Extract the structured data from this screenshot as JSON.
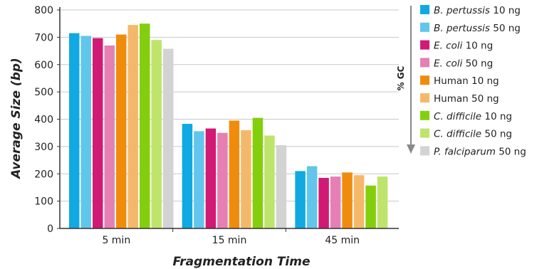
{
  "chart_data": {
    "type": "bar",
    "categories": [
      "5 min",
      "15 min",
      "45 min"
    ],
    "xlabel": "Fragmentation Time",
    "ylabel": "Average Size (bp)",
    "ylim": [
      0,
      800
    ],
    "yticks": [
      0,
      100,
      200,
      300,
      400,
      500,
      600,
      700,
      800
    ],
    "grid": true,
    "legend_position": "right",
    "legend_axis_label": "% GC",
    "series": [
      {
        "name_italic": "B. pertussis",
        "name_rest": " 10 ng",
        "color": "#11a9e2",
        "values": [
          715,
          383,
          210
        ]
      },
      {
        "name_italic": "B. pertussis",
        "name_rest": " 50 ng",
        "color": "#62c5ec",
        "values": [
          705,
          356,
          228
        ]
      },
      {
        "name_italic": "E. coli",
        "name_rest": " 10 ng",
        "color": "#d11a74",
        "values": [
          697,
          366,
          185
        ]
      },
      {
        "name_italic": "E. coli",
        "name_rest": " 50 ng",
        "color": "#e67fb3",
        "values": [
          670,
          350,
          190
        ]
      },
      {
        "name_italic": "",
        "name_rest": "Human 10 ng",
        "color": "#f08c0c",
        "values": [
          710,
          395,
          205
        ]
      },
      {
        "name_italic": "",
        "name_rest": "Human 50 ng",
        "color": "#f5b86a",
        "values": [
          745,
          360,
          195
        ]
      },
      {
        "name_italic": "C. difficile",
        "name_rest": " 10 ng",
        "color": "#84cf0d",
        "values": [
          750,
          405,
          157
        ]
      },
      {
        "name_italic": "C. difficile",
        "name_rest": " 50 ng",
        "color": "#bfe46b",
        "values": [
          690,
          340,
          190
        ]
      },
      {
        "name_italic": "P. falciparum",
        "name_rest": " 50 ng",
        "color": "#d3d3d3",
        "values": [
          658,
          305,
          null
        ]
      }
    ]
  }
}
